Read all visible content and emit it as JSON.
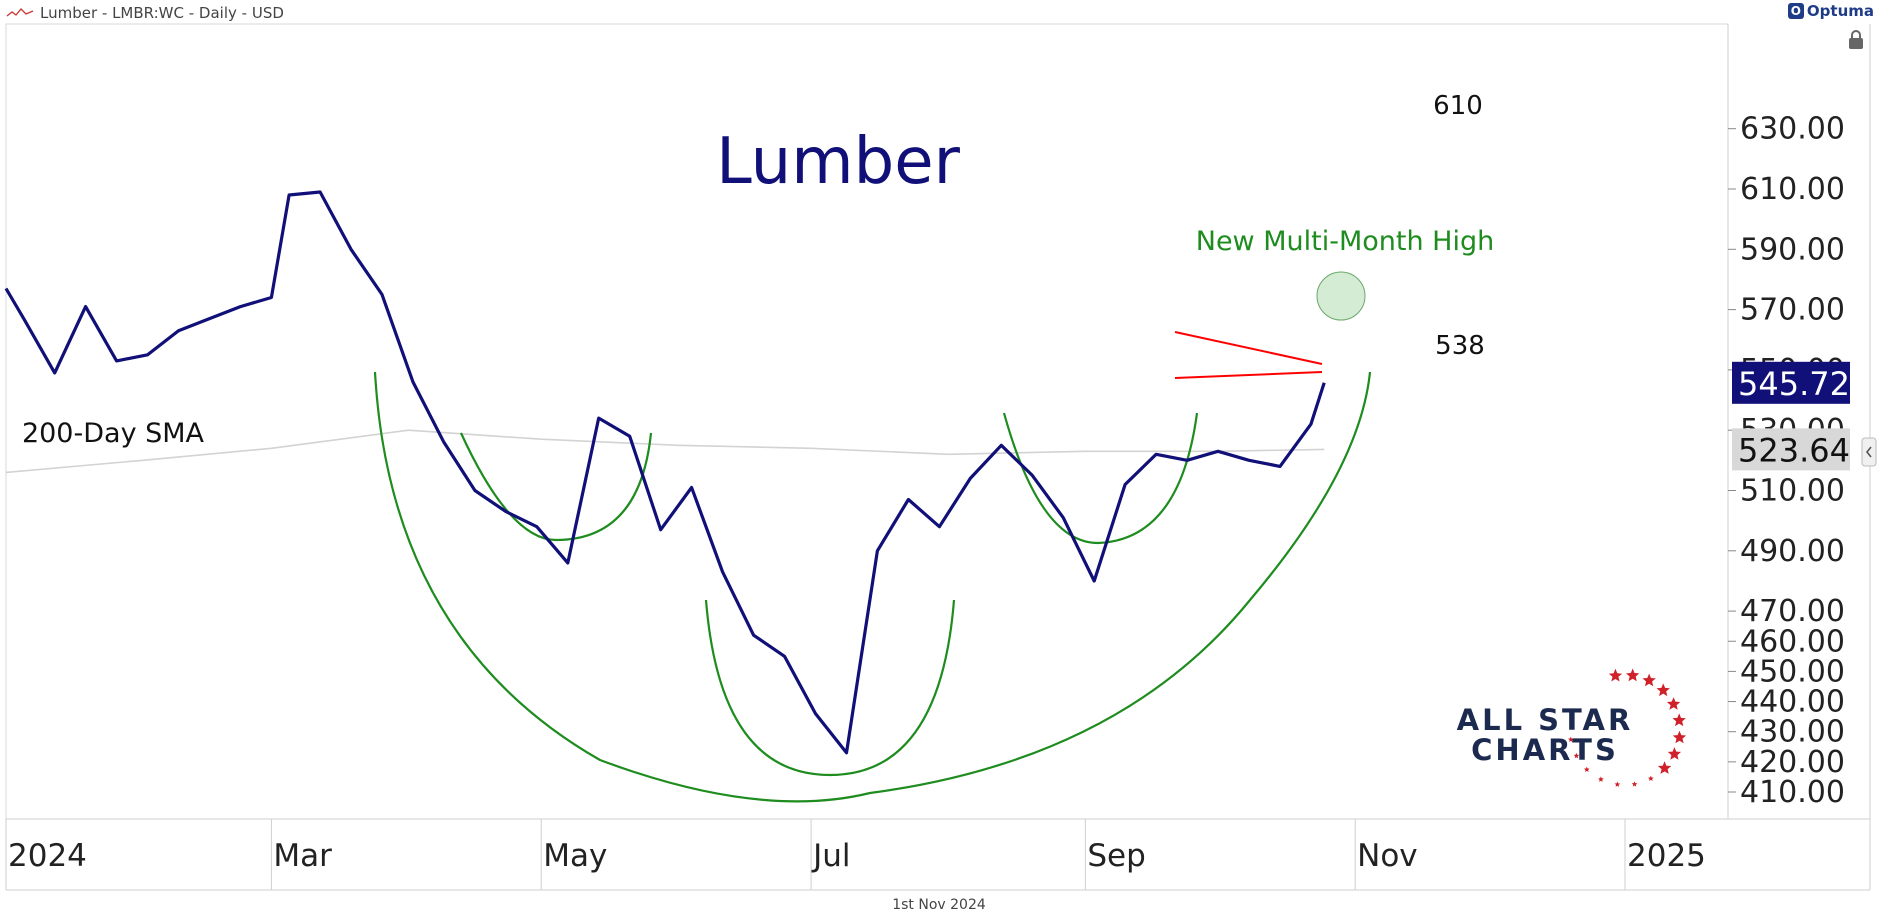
{
  "header": {
    "title": "Lumber - LMBR:WC - Daily - USD",
    "brand": "Optuma"
  },
  "footer": {
    "date": "1st Nov 2024"
  },
  "watermark": {
    "line1": "ALL STAR",
    "line2": "CHARTS"
  },
  "colors": {
    "price": "#101078",
    "sma": "#d3d3d3",
    "pattern": "#1e8c1e",
    "triangle": "#ff0000",
    "price_badge_bg": "#101078",
    "sma_badge_bg": "#d8d8d8",
    "annotation_green": "#1e8c1e"
  },
  "chart_data": {
    "type": "line",
    "title": "Lumber",
    "ylim": [
      405,
      635
    ],
    "y_ticks": [
      "630.00",
      "610.00",
      "590.00",
      "570.00",
      "550.00",
      "530.00",
      "510.00",
      "490.00",
      "470.00",
      "460.00",
      "450.00",
      "440.00",
      "430.00",
      "420.00",
      "410.00"
    ],
    "x_ticks": [
      "2024",
      "Mar",
      "May",
      "Jul",
      "Sep",
      "Nov",
      "2025"
    ],
    "series": [
      {
        "name": "Lumber",
        "dates": [
          "2024-01-01",
          "2024-01-05",
          "2024-01-12",
          "2024-01-19",
          "2024-01-26",
          "2024-02-02",
          "2024-02-09",
          "2024-02-16",
          "2024-02-23",
          "2024-03-01",
          "2024-03-05",
          "2024-03-12",
          "2024-03-19",
          "2024-03-26",
          "2024-04-02",
          "2024-04-09",
          "2024-04-16",
          "2024-04-23",
          "2024-04-30",
          "2024-05-07",
          "2024-05-14",
          "2024-05-21",
          "2024-05-28",
          "2024-06-04",
          "2024-06-11",
          "2024-06-18",
          "2024-06-25",
          "2024-07-02",
          "2024-07-09",
          "2024-07-16",
          "2024-07-23",
          "2024-07-30",
          "2024-08-06",
          "2024-08-13",
          "2024-08-20",
          "2024-08-27",
          "2024-09-03",
          "2024-09-10",
          "2024-09-17",
          "2024-09-24",
          "2024-10-01",
          "2024-10-08",
          "2024-10-15",
          "2024-10-22",
          "2024-10-25"
        ],
        "values": [
          577,
          567,
          549,
          571,
          553,
          555,
          563,
          567,
          571,
          574,
          608,
          609,
          590,
          575,
          546,
          526,
          510,
          503,
          498,
          486,
          534,
          528,
          497,
          511,
          483,
          462,
          455,
          436,
          423,
          490,
          507,
          498,
          514,
          525,
          515,
          501,
          480,
          512,
          522,
          520,
          523,
          520,
          518,
          532,
          545.72
        ]
      },
      {
        "name": "200-Day SMA",
        "dates": [
          "2024-01-01",
          "2024-02-01",
          "2024-03-01",
          "2024-04-01",
          "2024-05-01",
          "2024-06-01",
          "2024-07-01",
          "2024-08-01",
          "2024-09-01",
          "2024-10-01",
          "2024-10-25"
        ],
        "values": [
          516,
          520,
          524,
          530,
          527,
          525,
          524,
          522,
          523,
          523,
          523.64
        ]
      }
    ],
    "price_labels": [
      {
        "text": "545.72",
        "value": 545.72,
        "color": "#101078"
      },
      {
        "text": "523.64",
        "value": 523.64,
        "color": "#d8d8d8"
      }
    ],
    "annotations": [
      {
        "text": "Lumber"
      },
      {
        "text": "610"
      },
      {
        "text": "538"
      },
      {
        "text": "New Multi-Month High"
      },
      {
        "text": "200-Day SMA"
      }
    ],
    "grid": false
  }
}
